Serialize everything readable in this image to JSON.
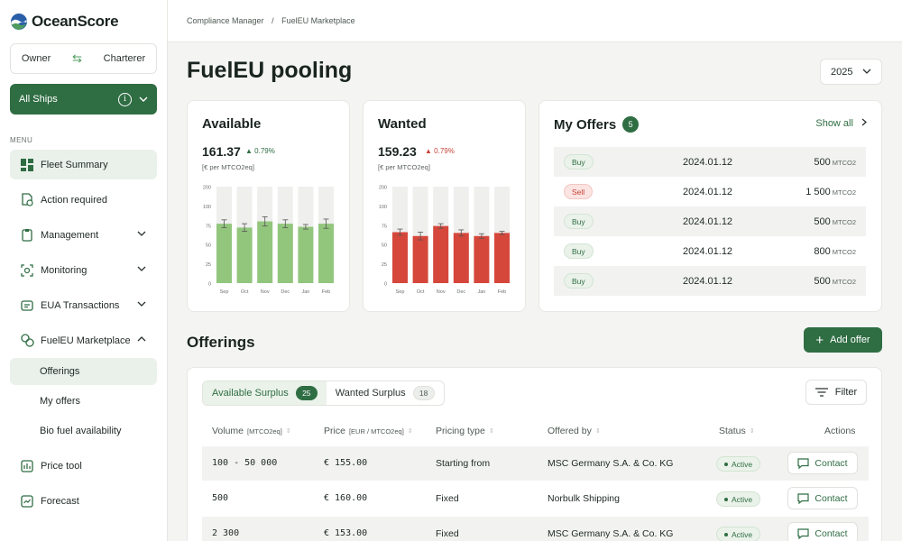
{
  "app": {
    "name": "OceanScore"
  },
  "sidebar": {
    "roles": {
      "owner": "Owner",
      "charterer": "Charterer"
    },
    "ships_selector": "All Ships",
    "menu_label": "MENU",
    "items": [
      {
        "label": "Fleet Summary"
      },
      {
        "label": "Action required"
      },
      {
        "label": "Management"
      },
      {
        "label": "Monitoring"
      },
      {
        "label": "EUA Transactions"
      },
      {
        "label": "FuelEU Marketplace"
      },
      {
        "label": "Price tool"
      },
      {
        "label": "Forecast"
      }
    ],
    "subitems": [
      {
        "label": "Offerings"
      },
      {
        "label": "My offers"
      },
      {
        "label": "Bio fuel availability"
      }
    ]
  },
  "breadcrumb": {
    "first": "Compliance Manager",
    "sep": "/",
    "second": "FuelEU Marketplace"
  },
  "page": {
    "title": "FuelEU pooling",
    "year": "2025"
  },
  "available": {
    "title": "Available",
    "price": "161.37",
    "delta": "▲ 0.79%",
    "unit": "[€ per MTCO2eq]",
    "bar_color": "#92c67d"
  },
  "wanted": {
    "title": "Wanted",
    "price": "159.23",
    "delta": "▲ 0.79%",
    "unit": "[€ per MTCO2eq]",
    "bar_color": "#d6473b"
  },
  "chart_data": [
    {
      "type": "bar",
      "categories": [
        "Sep",
        "Oct",
        "Nov",
        "Dec",
        "Jan",
        "Feb"
      ],
      "values": [
        77,
        72,
        80,
        77,
        73,
        77
      ],
      "errors": [
        5,
        5,
        6,
        5,
        3,
        6
      ],
      "ylim": [
        0,
        200
      ],
      "yticks": [
        0,
        25,
        50,
        75,
        100,
        200
      ]
    },
    {
      "type": "bar",
      "categories": [
        "Sep",
        "Oct",
        "Nov",
        "Dec",
        "Jan",
        "Feb"
      ],
      "values": [
        66,
        61,
        74,
        65,
        61,
        65
      ],
      "errors": [
        4,
        5,
        3,
        4,
        3,
        2
      ],
      "ylim": [
        0,
        200
      ],
      "yticks": [
        0,
        25,
        50,
        75,
        100,
        200
      ]
    }
  ],
  "my_offers": {
    "title": "My Offers",
    "count": "5",
    "show_all": "Show all",
    "unit": "MTCO2",
    "rows": [
      {
        "type": "Buy",
        "date": "2024.01.12",
        "amount": "500"
      },
      {
        "type": "Sell",
        "date": "2024.01.12",
        "amount": "1 500"
      },
      {
        "type": "Buy",
        "date": "2024.01.12",
        "amount": "500"
      },
      {
        "type": "Buy",
        "date": "2024.01.12",
        "amount": "800"
      },
      {
        "type": "Buy",
        "date": "2024.01.12",
        "amount": "500"
      }
    ]
  },
  "offerings": {
    "title": "Offerings",
    "add_label": "Add offer",
    "tabs": [
      {
        "label": "Available Surplus",
        "count": "25"
      },
      {
        "label": "Wanted Surplus",
        "count": "18"
      }
    ],
    "filter_label": "Filter",
    "columns": {
      "volume": "Volume",
      "volume_unit": "[MTCO2eq]",
      "price": "Price",
      "price_unit": "[EUR / MTCO2eq]",
      "pricing": "Pricing type",
      "offered_by": "Offered by",
      "status": "Status",
      "actions": "Actions"
    },
    "rows": [
      {
        "volume": "100 - 50 000",
        "price": "€ 155.00",
        "pricing": "Starting from",
        "offered_by": "MSC Germany S.A. & Co. KG",
        "status": "Active",
        "action": "Contact"
      },
      {
        "volume": "500",
        "price": "€ 160.00",
        "pricing": "Fixed",
        "offered_by": "Norbulk Shipping",
        "status": "Active",
        "action": "Contact"
      },
      {
        "volume": "2 300",
        "price": "€ 153.00",
        "pricing": "Fixed",
        "offered_by": "MSC Germany S.A. & Co. KG",
        "status": "Active",
        "action": "Contact"
      }
    ]
  },
  "colors": {
    "brand": "#2f6d43",
    "accent_light": "#eaf2ea",
    "sell": "#c9443a"
  }
}
